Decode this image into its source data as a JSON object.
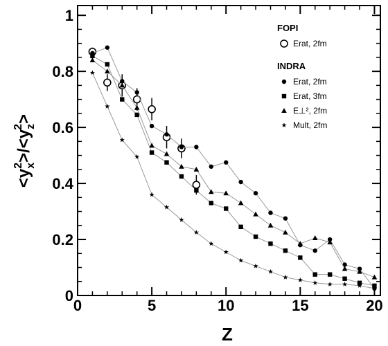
{
  "chart_data": {
    "type": "scatter",
    "xlabel": "Z",
    "ylabel": [
      "<y",
      "x",
      "2",
      ">/<y",
      "z",
      "2",
      ">"
    ],
    "xlim": [
      0,
      20.4
    ],
    "ylim": [
      0,
      1.035
    ],
    "xticks": [
      0,
      5,
      10,
      15,
      20
    ],
    "yticks": [
      0,
      0.2,
      0.4,
      0.6,
      0.8,
      1
    ],
    "xminor_ticks": [
      1,
      2,
      3,
      4,
      6,
      7,
      8,
      9,
      11,
      12,
      13,
      14,
      16,
      17,
      18,
      19
    ],
    "yminor_ticks": [
      0.05,
      0.1,
      0.15,
      0.25,
      0.3,
      0.35,
      0.45,
      0.5,
      0.55,
      0.65,
      0.7,
      0.75,
      0.85,
      0.9,
      0.95
    ],
    "legend_groups": [
      "FOPI",
      "INDRA"
    ],
    "series": [
      {
        "name": "Erat, 2fm",
        "group": "FOPI",
        "marker": "open-circle",
        "color": "#000000",
        "line": false,
        "x": [
          1,
          2,
          3,
          4,
          5,
          6,
          7,
          8
        ],
        "values": [
          0.87,
          0.76,
          0.75,
          0.7,
          0.665,
          0.565,
          0.525,
          0.395
        ],
        "errors": [
          0.015,
          0.03,
          0.04,
          0.04,
          0.04,
          0.04,
          0.035,
          0.035
        ]
      },
      {
        "name": "Erat, 2fm",
        "group": "INDRA",
        "marker": "circle",
        "color": "#000000",
        "line": true,
        "x": [
          1,
          2,
          3,
          4,
          5,
          6,
          7,
          8,
          9,
          10,
          11,
          12,
          13,
          14,
          15,
          16,
          17,
          18,
          19,
          20
        ],
        "values": [
          0.865,
          0.885,
          0.765,
          0.725,
          0.605,
          0.575,
          0.53,
          0.53,
          0.46,
          0.475,
          0.405,
          0.365,
          0.295,
          0.275,
          0.18,
          0.16,
          0.2,
          0.11,
          0.095,
          0.025
        ]
      },
      {
        "name": "Erat, 3fm",
        "group": "INDRA",
        "marker": "square",
        "color": "#000000",
        "line": true,
        "x": [
          1,
          2,
          3,
          4,
          5,
          6,
          7,
          8,
          9,
          10,
          11,
          12,
          13,
          14,
          15,
          16,
          17,
          18,
          19,
          20
        ],
        "values": [
          0.855,
          0.825,
          0.7,
          0.645,
          0.51,
          0.475,
          0.425,
          0.375,
          0.33,
          0.31,
          0.245,
          0.21,
          0.185,
          0.16,
          0.135,
          0.075,
          0.075,
          0.06,
          0.045,
          0.035
        ]
      },
      {
        "name": "E⊥², 2fm",
        "group": "INDRA",
        "marker": "triangle",
        "color": "#000000",
        "line": true,
        "x": [
          1,
          2,
          3,
          4,
          5,
          6,
          7,
          8,
          9,
          10,
          11,
          12,
          13,
          14,
          15,
          16,
          17,
          18,
          19,
          20
        ],
        "values": [
          0.84,
          0.8,
          0.75,
          0.67,
          0.535,
          0.505,
          0.46,
          0.45,
          0.37,
          0.365,
          0.33,
          0.29,
          0.25,
          0.225,
          0.185,
          0.205,
          0.19,
          0.095,
          0.085,
          0.065
        ]
      },
      {
        "name": "Mult, 2fm",
        "group": "INDRA",
        "marker": "star",
        "color": "#000000",
        "line": true,
        "x": [
          1,
          2,
          3,
          4,
          5,
          6,
          7,
          8,
          9,
          10,
          11,
          12,
          13,
          14,
          15,
          16,
          17,
          18,
          19,
          20
        ],
        "values": [
          0.795,
          0.675,
          0.555,
          0.495,
          0.36,
          0.315,
          0.27,
          0.225,
          0.185,
          0.155,
          0.125,
          0.105,
          0.085,
          0.065,
          0.055,
          0.045,
          0.04,
          0.04,
          0.035,
          0.025
        ]
      }
    ]
  }
}
